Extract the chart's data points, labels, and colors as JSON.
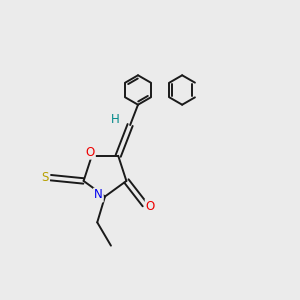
{
  "background_color": "#ebebeb",
  "bond_color": "#1a1a1a",
  "sulfur_color": "#b8a000",
  "nitrogen_color": "#0000ee",
  "oxygen_color": "#ee0000",
  "hydrogen_color": "#008888",
  "bond_width": 1.4,
  "figsize": [
    3.0,
    3.0
  ],
  "dpi": 100,
  "xlim": [
    0,
    10
  ],
  "ylim": [
    0,
    10
  ]
}
